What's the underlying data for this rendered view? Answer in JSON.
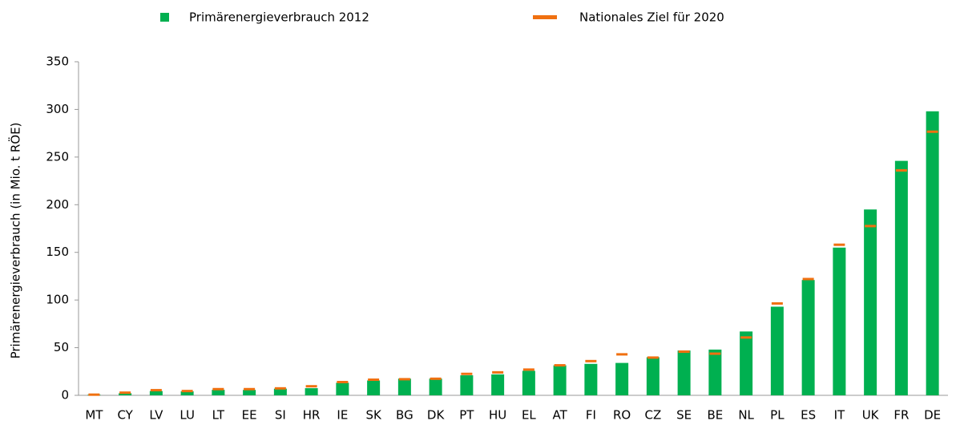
{
  "chart_data": {
    "type": "bar",
    "ylabel": "Primärenergieverbrauch (in Mio. t RÖE)",
    "categories": [
      "MT",
      "CY",
      "LV",
      "LU",
      "LT",
      "EE",
      "SI",
      "HR",
      "IE",
      "SK",
      "BG",
      "DK",
      "PT",
      "HU",
      "EL",
      "AT",
      "FI",
      "RO",
      "CZ",
      "SE",
      "BE",
      "NL",
      "PL",
      "ES",
      "IT",
      "UK",
      "FR",
      "DE"
    ],
    "series": [
      {
        "name": "Primärenergieverbrauch 2012",
        "color": "#00b050",
        "mark": "bar",
        "values": [
          0.7,
          2.2,
          4.5,
          4.2,
          5.8,
          5.7,
          7.0,
          7.5,
          13.2,
          15.6,
          17.5,
          17.5,
          21.0,
          22.0,
          25.7,
          31.5,
          33.0,
          34.0,
          40.0,
          47.0,
          48.0,
          67.0,
          93.0,
          121.0,
          155.0,
          195.0,
          246.0,
          298.0
        ]
      },
      {
        "name": "Nationales Ziel für 2020",
        "color": "#f07010",
        "mark": "dash",
        "values": [
          0.7,
          2.8,
          5.4,
          4.5,
          6.5,
          6.5,
          7.3,
          9.5,
          13.9,
          16.4,
          16.9,
          17.4,
          22.5,
          24.1,
          27.0,
          31.5,
          35.9,
          43.0,
          39.6,
          45.8,
          43.7,
          60.7,
          96.4,
          122.0,
          158.0,
          177.6,
          236.0,
          276.6
        ]
      }
    ],
    "ylim": [
      0,
      350
    ],
    "yticks": [
      0,
      50,
      100,
      150,
      200,
      250,
      300,
      350
    ],
    "grid": false
  }
}
